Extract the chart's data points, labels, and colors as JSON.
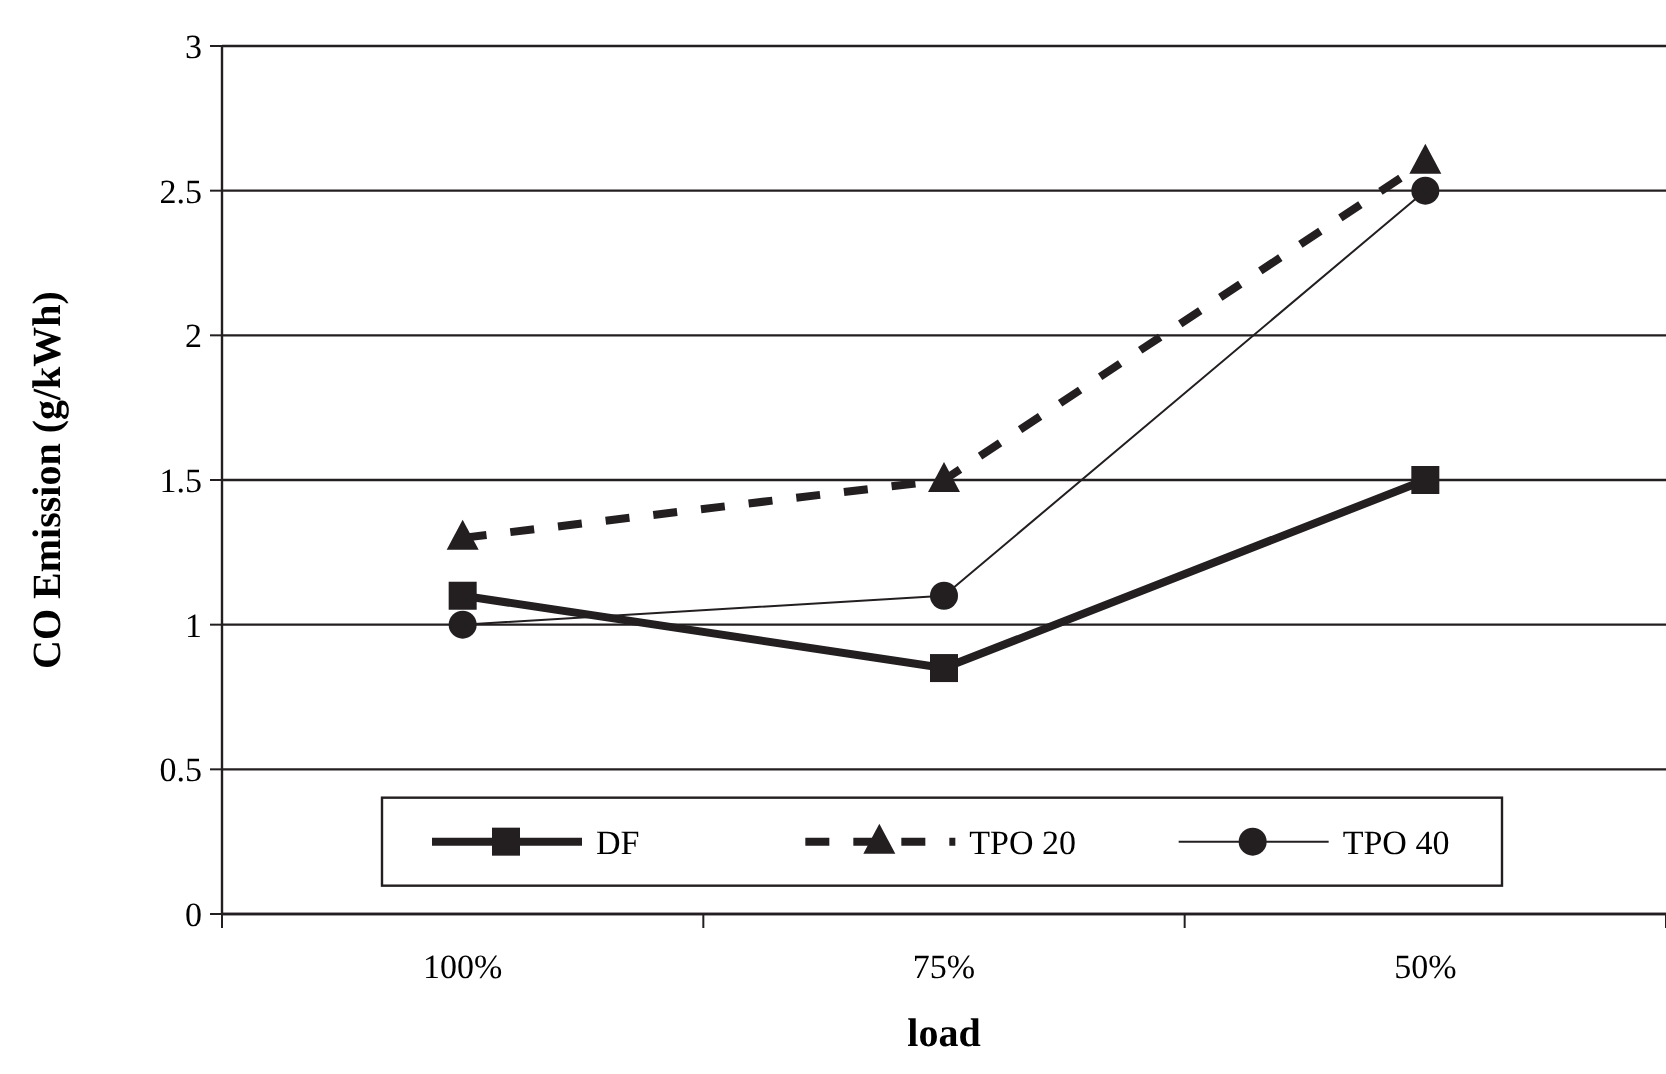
{
  "chart_data": {
    "type": "line",
    "xlabel": "load",
    "ylabel": "CO Emission (g/kWh)",
    "categories": [
      "100%",
      "75%",
      "50%"
    ],
    "ylim": [
      0,
      3
    ],
    "yticks": [
      0,
      0.5,
      1,
      1.5,
      2,
      2.5,
      3
    ],
    "grid": "y",
    "legend": "bottom",
    "series": [
      {
        "name": "DF",
        "color": "#231f20",
        "values": [
          1.1,
          0.85,
          1.5
        ],
        "marker": "square",
        "line_style": "solid"
      },
      {
        "name": "TPO 20",
        "color": "#231f20",
        "values": [
          1.3,
          1.5,
          2.6
        ],
        "marker": "triangle",
        "line_style": "dashed"
      },
      {
        "name": "TPO 40",
        "color": "#231f20",
        "values": [
          1.0,
          1.1,
          2.5
        ],
        "marker": "circle",
        "line_style": "solid"
      }
    ]
  }
}
